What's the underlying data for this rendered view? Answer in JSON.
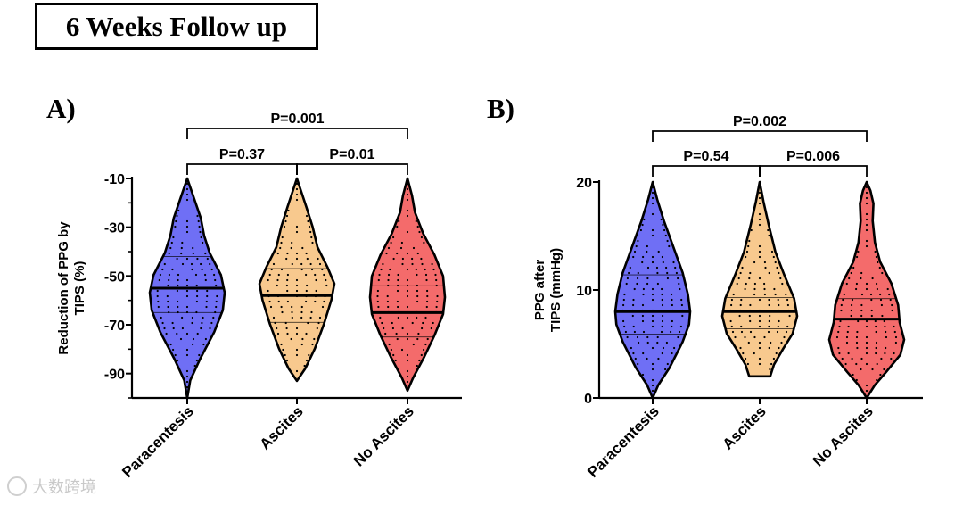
{
  "header": {
    "title": "6 Weeks Follow up"
  },
  "watermark": {
    "text": "大数跨境"
  },
  "chart_data": [
    {
      "panel": "A)",
      "type": "violin",
      "ylabel": [
        "Reduction of PPG by",
        "TIPS (%)"
      ],
      "ylim": [
        -100,
        -10
      ],
      "yticks": [
        -10,
        -30,
        -50,
        -70,
        -90
      ],
      "categories": [
        "Paracentesis",
        "Ascites",
        "No Ascites"
      ],
      "colors": [
        "#6f6ff5",
        "#f8c98e",
        "#f46b6b"
      ],
      "medians": [
        -55,
        -58,
        -65
      ],
      "quartiles": [
        [
          -65,
          -42
        ],
        [
          -69,
          -47
        ],
        [
          -75,
          -54
        ]
      ],
      "ranges": [
        [
          -100,
          -10
        ],
        [
          -93,
          -10
        ],
        [
          -97,
          -10
        ]
      ],
      "comparisons": [
        {
          "label": "P=0.37",
          "from": 0,
          "to": 1,
          "level": 1
        },
        {
          "label": "P=0.01",
          "from": 1,
          "to": 2,
          "level": 1
        },
        {
          "label": "P=0.001",
          "from": 0,
          "to": 2,
          "level": 2
        }
      ]
    },
    {
      "panel": "B)",
      "type": "violin",
      "ylabel": [
        "PPG after",
        "TIPS (mmHg)"
      ],
      "ylim": [
        0,
        20
      ],
      "yticks": [
        0,
        10,
        20
      ],
      "categories": [
        "Paracentesis",
        "Ascites",
        "No Ascites"
      ],
      "colors": [
        "#6f6ff5",
        "#f8c98e",
        "#f46b6b"
      ],
      "medians": [
        8,
        8,
        7.3
      ],
      "quartiles": [
        [
          5.9,
          11.4
        ],
        [
          6.4,
          9.3
        ],
        [
          5,
          9.2
        ]
      ],
      "ranges": [
        [
          0,
          20
        ],
        [
          2,
          20
        ],
        [
          0,
          20
        ]
      ],
      "comparisons": [
        {
          "label": "P=0.54",
          "from": 0,
          "to": 1,
          "level": 1
        },
        {
          "label": "P=0.006",
          "from": 1,
          "to": 2,
          "level": 1
        },
        {
          "label": "P=0.002",
          "from": 0,
          "to": 2,
          "level": 2
        }
      ]
    }
  ]
}
